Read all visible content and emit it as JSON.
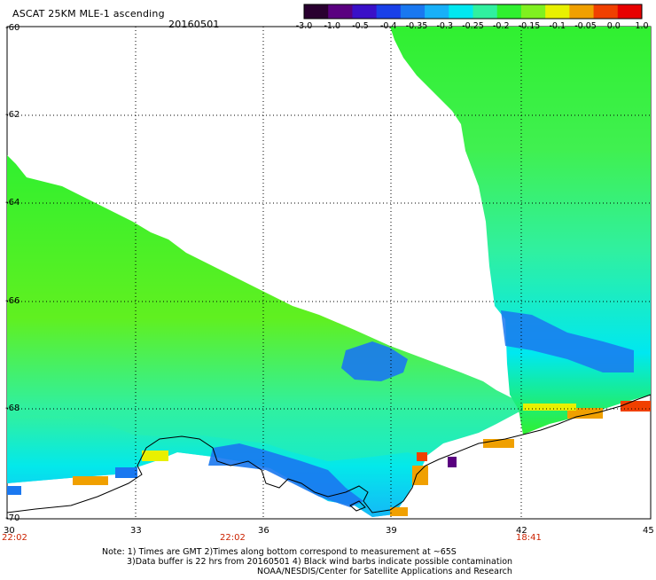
{
  "header": {
    "product_title": "ASCAT 25KM MLE-1 ascending",
    "date": "20160501"
  },
  "colorbar": {
    "tick_labels": [
      "-3.0",
      "-1.0",
      "-0.5",
      "-0.4",
      "-0.35",
      "-0.3",
      "-0.25",
      "-0.2",
      "-0.15",
      "-0.1",
      "-0.05",
      "0.0",
      "1.0"
    ],
    "colors": [
      "#2a0030",
      "#5a0080",
      "#3a10c8",
      "#1a40e8",
      "#1a78f0",
      "#18b0f8",
      "#00e8f0",
      "#30f0a0",
      "#30f030",
      "#80f020",
      "#e8f000",
      "#f0a000",
      "#f04000",
      "#e80000"
    ]
  },
  "map": {
    "lat_labels": [
      "-60",
      "-62",
      "-64",
      "-66",
      "-68",
      "-70"
    ],
    "lon_labels": [
      "30",
      "33",
      "36",
      "39",
      "42",
      "45"
    ],
    "pass_times": [
      "22:02",
      "22:02",
      "18:41"
    ],
    "land_color": "#ffffff",
    "coastline_color": "#000000"
  },
  "footer": {
    "note_line1": "Note: 1) Times are GMT 2)Times along bottom correspond to measurement at ~65S",
    "note_line2": "3)Data buffer is 22 hrs from 20160501 4) Black wind barbs indicate possible contamination",
    "credit": "NOAA/NESDIS/Center for Satellite Applications and Research"
  }
}
